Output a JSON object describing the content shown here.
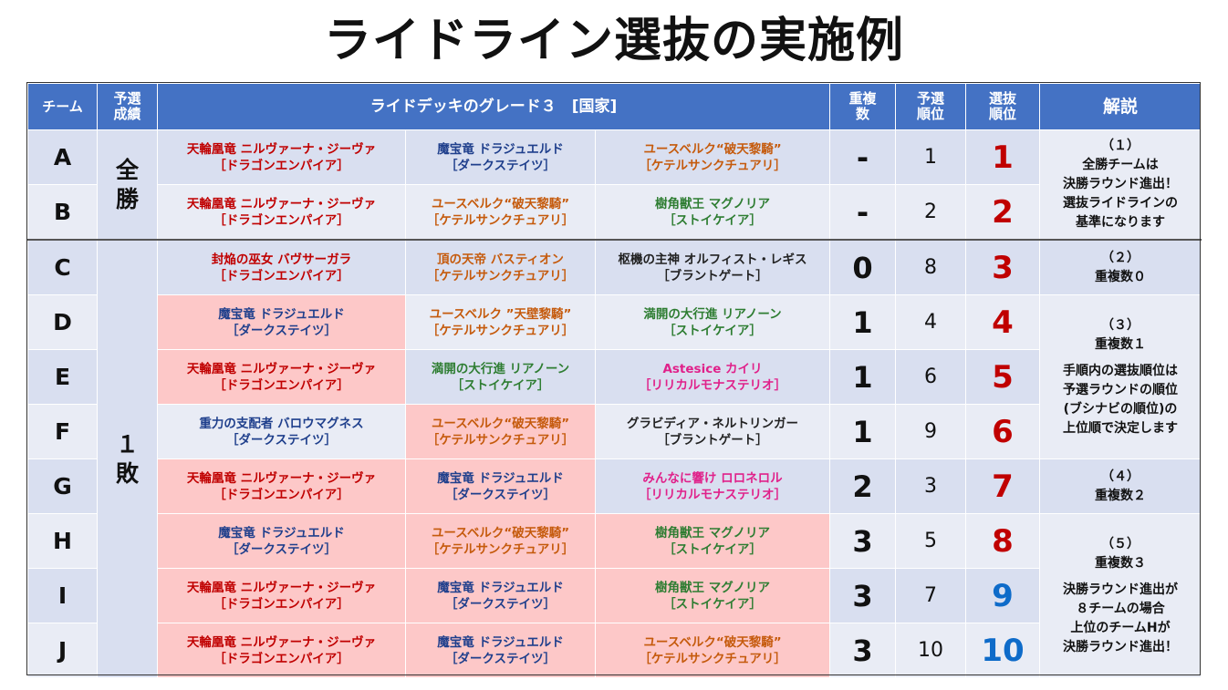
{
  "title": "ライドライン選抜の実施例",
  "headers": {
    "team": "チーム",
    "prelim_result": "予選\n成績",
    "deck": "ライドデッキのグレード３　[国家]",
    "dup_count": "重複\n数",
    "prelim_rank": "予選\n順位",
    "select_rank": "選抜\n順位",
    "note": "解説"
  },
  "result_groups": [
    {
      "label": "全\n勝"
    },
    {
      "label": "１\n敗"
    }
  ],
  "colors": {
    "header": "#4472c4",
    "row_light": "#e9ecf5",
    "row_dark": "#d9dff0",
    "highlight_pink": "#fdc8c8",
    "rank_red": "#c00000",
    "rank_blue": "#0e6bc9"
  },
  "rows": [
    {
      "team": "A",
      "decks": [
        {
          "name": "天輪凰竜 ニルヴァーナ・ジーヴァ",
          "nation": "［ドラゴンエンパイア］",
          "color": "red",
          "highlight": false
        },
        {
          "name": "魔宝竜 ドラジュエルド",
          "nation": "［ダークステイツ］",
          "color": "blue",
          "highlight": false
        },
        {
          "name": "ユースベルク“破天黎騎”",
          "nation": "［ケテルサンクチュアリ］",
          "color": "orange",
          "highlight": false
        }
      ],
      "dup": "-",
      "prelim": "1",
      "select": "1",
      "select_color": "red"
    },
    {
      "team": "B",
      "decks": [
        {
          "name": "天輪凰竜 ニルヴァーナ・ジーヴァ",
          "nation": "［ドラゴンエンパイア］",
          "color": "red",
          "highlight": false
        },
        {
          "name": "ユースベルク“破天黎騎”",
          "nation": "［ケテルサンクチュアリ］",
          "color": "orange",
          "highlight": false
        },
        {
          "name": "樹角獣王 マグノリア",
          "nation": "［ストイケイア］",
          "color": "green",
          "highlight": false
        }
      ],
      "dup": "-",
      "prelim": "2",
      "select": "2",
      "select_color": "red"
    },
    {
      "team": "C",
      "decks": [
        {
          "name": "封焔の巫女 バヴサーガラ",
          "nation": "［ドラゴンエンパイア］",
          "color": "red",
          "highlight": false
        },
        {
          "name": "頂の天帝 バスティオン",
          "nation": "［ケテルサンクチュアリ］",
          "color": "orange",
          "highlight": false
        },
        {
          "name": "枢機の主神 オルフィスト・レギス",
          "nation": "［ブラントゲート］",
          "color": "black",
          "highlight": false
        }
      ],
      "dup": "0",
      "prelim": "8",
      "select": "3",
      "select_color": "red"
    },
    {
      "team": "D",
      "decks": [
        {
          "name": "魔宝竜 ドラジュエルド",
          "nation": "［ダークステイツ］",
          "color": "blue",
          "highlight": true
        },
        {
          "name": "ユースベルク ”天壁黎騎”",
          "nation": "［ケテルサンクチュアリ］",
          "color": "orange",
          "highlight": false
        },
        {
          "name": "満開の大行進 リアノーン",
          "nation": "［ストイケイア］",
          "color": "green",
          "highlight": false
        }
      ],
      "dup": "1",
      "prelim": "4",
      "select": "4",
      "select_color": "red"
    },
    {
      "team": "E",
      "decks": [
        {
          "name": "天輪凰竜 ニルヴァーナ・ジーヴァ",
          "nation": "［ドラゴンエンパイア］",
          "color": "red",
          "highlight": true
        },
        {
          "name": "満開の大行進 リアノーン",
          "nation": "［ストイケイア］",
          "color": "green",
          "highlight": false
        },
        {
          "name": "Astesice カイリ",
          "nation": "［リリカルモナステリオ］",
          "color": "pink",
          "highlight": false
        }
      ],
      "dup": "1",
      "prelim": "6",
      "select": "5",
      "select_color": "red"
    },
    {
      "team": "F",
      "decks": [
        {
          "name": "重力の支配者 バロウマグネス",
          "nation": "［ダークステイツ］",
          "color": "blue",
          "highlight": false
        },
        {
          "name": "ユースベルク“破天黎騎”",
          "nation": "［ケテルサンクチュアリ］",
          "color": "orange",
          "highlight": true
        },
        {
          "name": "グラビディア・ネルトリンガー",
          "nation": "［ブラントゲート］",
          "color": "black",
          "highlight": false
        }
      ],
      "dup": "1",
      "prelim": "9",
      "select": "6",
      "select_color": "red"
    },
    {
      "team": "G",
      "decks": [
        {
          "name": "天輪凰竜 ニルヴァーナ・ジーヴァ",
          "nation": "［ドラゴンエンパイア］",
          "color": "red",
          "highlight": true
        },
        {
          "name": "魔宝竜 ドラジュエルド",
          "nation": "［ダークステイツ］",
          "color": "blue",
          "highlight": true
        },
        {
          "name": "みんなに響け ロロネロル",
          "nation": "［リリカルモナステリオ］",
          "color": "pink",
          "highlight": false
        }
      ],
      "dup": "2",
      "prelim": "3",
      "select": "7",
      "select_color": "red"
    },
    {
      "team": "H",
      "decks": [
        {
          "name": "魔宝竜 ドラジュエルド",
          "nation": "［ダークステイツ］",
          "color": "blue",
          "highlight": true
        },
        {
          "name": "ユースベルク“破天黎騎”",
          "nation": "［ケテルサンクチュアリ］",
          "color": "orange",
          "highlight": true
        },
        {
          "name": "樹角獣王 マグノリア",
          "nation": "［ストイケイア］",
          "color": "green",
          "highlight": true
        }
      ],
      "dup": "3",
      "prelim": "5",
      "select": "8",
      "select_color": "red"
    },
    {
      "team": "I",
      "decks": [
        {
          "name": "天輪凰竜 ニルヴァーナ・ジーヴァ",
          "nation": "［ドラゴンエンパイア］",
          "color": "red",
          "highlight": true
        },
        {
          "name": "魔宝竜 ドラジュエルド",
          "nation": "［ダークステイツ］",
          "color": "blue",
          "highlight": true
        },
        {
          "name": "樹角獣王 マグノリア",
          "nation": "［ストイケイア］",
          "color": "green",
          "highlight": true
        }
      ],
      "dup": "3",
      "prelim": "7",
      "select": "9",
      "select_color": "blue"
    },
    {
      "team": "J",
      "decks": [
        {
          "name": "天輪凰竜 ニルヴァーナ・ジーヴァ",
          "nation": "［ドラゴンエンパイア］",
          "color": "red",
          "highlight": true
        },
        {
          "name": "魔宝竜 ドラジュエルド",
          "nation": "［ダークステイツ］",
          "color": "blue",
          "highlight": true
        },
        {
          "name": "ユースベルク“破天黎騎”",
          "nation": "［ケテルサンクチュアリ］",
          "color": "orange",
          "highlight": true
        }
      ],
      "dup": "3",
      "prelim": "10",
      "select": "10",
      "select_color": "blue"
    }
  ],
  "notes": [
    {
      "lines": [
        "（１）",
        "全勝チームは",
        "決勝ラウンド進出！",
        "選抜ライドラインの",
        "基準になります"
      ]
    },
    {
      "lines": [
        "（２）",
        "重複数０"
      ]
    },
    {
      "lines": [
        "（３）",
        "重複数１",
        "",
        "手順内の選抜順位は",
        "予選ラウンドの順位",
        "(ブシナビの順位)の",
        "上位順で決定します"
      ]
    },
    {
      "lines": [
        "（４）",
        "重複数２"
      ]
    },
    {
      "lines": [
        "（５）",
        "重複数３",
        "",
        "決勝ラウンド進出が",
        "８チームの場合",
        "上位のチームHが",
        "決勝ラウンド進出！"
      ]
    }
  ]
}
